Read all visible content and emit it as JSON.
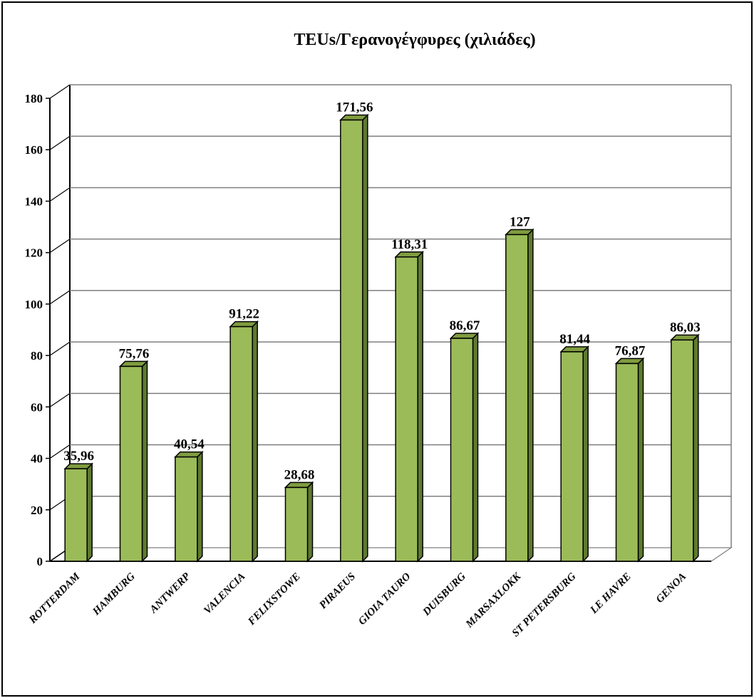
{
  "chart_data": {
    "type": "bar",
    "title": "TEUs/Γερανογέγφυρες (χιλιάδες)",
    "xlabel": "",
    "ylabel": "",
    "ylim": [
      0,
      180
    ],
    "yticks": [
      0,
      20,
      40,
      60,
      80,
      100,
      120,
      140,
      160,
      180
    ],
    "grid": true,
    "style": "3d-column",
    "colors": {
      "bar_front": "#9bbb59",
      "bar_side": "#5e7a2f",
      "bar_top": "#7f9c3f",
      "gridline": "#7f7f7f"
    },
    "categories": [
      "ROTTERDAM",
      "HAMBURG",
      "ANTWERP",
      "VALENCIA",
      "FELIXSTOWE",
      "PIRAEUS",
      "GIOIA TAURO",
      "DUISBURG",
      "MARSAXLOKK",
      "ST PETERSBURG",
      "LE HAVRE",
      "GENOA"
    ],
    "values": [
      35.96,
      75.76,
      40.54,
      91.22,
      28.68,
      171.56,
      118.31,
      86.67,
      127,
      81.44,
      76.87,
      86.03
    ],
    "value_labels": [
      "35,96",
      "75,76",
      "40,54",
      "91,22",
      "28,68",
      "171,56",
      "118,31",
      "86,67",
      "127",
      "81,44",
      "76,87",
      "86,03"
    ]
  }
}
